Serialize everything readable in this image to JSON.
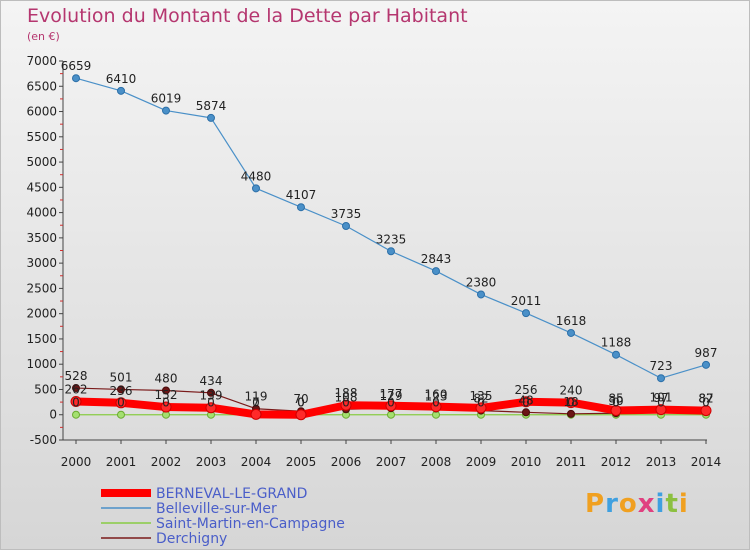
{
  "chart_data": {
    "type": "line",
    "title": "Evolution du Montant de la Dette par Habitant",
    "subtitle": "(en €)",
    "x": [
      "2000",
      "2001",
      "2002",
      "2003",
      "2004",
      "2005",
      "2006",
      "2007",
      "2008",
      "2009",
      "2010",
      "2011",
      "2012",
      "2013",
      "2014"
    ],
    "ylim": [
      -500,
      7000
    ],
    "yticks": [
      -500,
      0,
      500,
      1000,
      1500,
      2000,
      2500,
      3000,
      3500,
      4000,
      4500,
      5000,
      5500,
      6000,
      6500,
      7000
    ],
    "grid": false,
    "legend_position": "bottom-left",
    "series": [
      {
        "name": "BERNEVAL-LE-GRAND",
        "color": "#ff0000",
        "values": [
          262,
          236,
          152,
          139,
          7,
          0,
          188,
          177,
          160,
          135,
          256,
          240,
          85,
          101,
          82
        ]
      },
      {
        "name": "Belleville-sur-Mer",
        "color": "#4a90c8",
        "values": [
          6659,
          6410,
          6019,
          5874,
          4480,
          4107,
          3735,
          3235,
          2843,
          2380,
          2011,
          1618,
          1188,
          723,
          987
        ]
      },
      {
        "name": "Saint-Martin-en-Campagne",
        "color": "#88cc44",
        "values": [
          0,
          0,
          0,
          0,
          0,
          0,
          0,
          0,
          0,
          0,
          0,
          0,
          0,
          0,
          0
        ]
      },
      {
        "name": "Derchigny",
        "color": "#7a1a1a",
        "values": [
          528,
          501,
          480,
          434,
          119,
          70,
          108,
          129,
          123,
          82,
          48,
          18,
          30,
          97,
          87
        ]
      }
    ],
    "labels_shown": [
      [
        "262",
        "236",
        "152",
        "139",
        "7",
        "0",
        "188",
        "177",
        "160",
        "135",
        "256",
        "240",
        "85",
        "101",
        "82"
      ],
      [
        "6659",
        "6410",
        "6019",
        "5874",
        "4480",
        "4107",
        "3735",
        "3235",
        "2843",
        "2380",
        "2011",
        "1618",
        "1188",
        "723",
        "987"
      ],
      [
        "0",
        "0",
        "0",
        "0",
        "0",
        "0",
        "0",
        "0",
        "0",
        "0",
        "0",
        "0",
        "0",
        "0",
        "0"
      ],
      [
        "528",
        "501",
        "480",
        "434",
        "119",
        "70",
        "108",
        "129",
        "123",
        "82",
        "48",
        "18",
        "30",
        "97",
        "87"
      ]
    ]
  },
  "logo_text": "Proxiti"
}
